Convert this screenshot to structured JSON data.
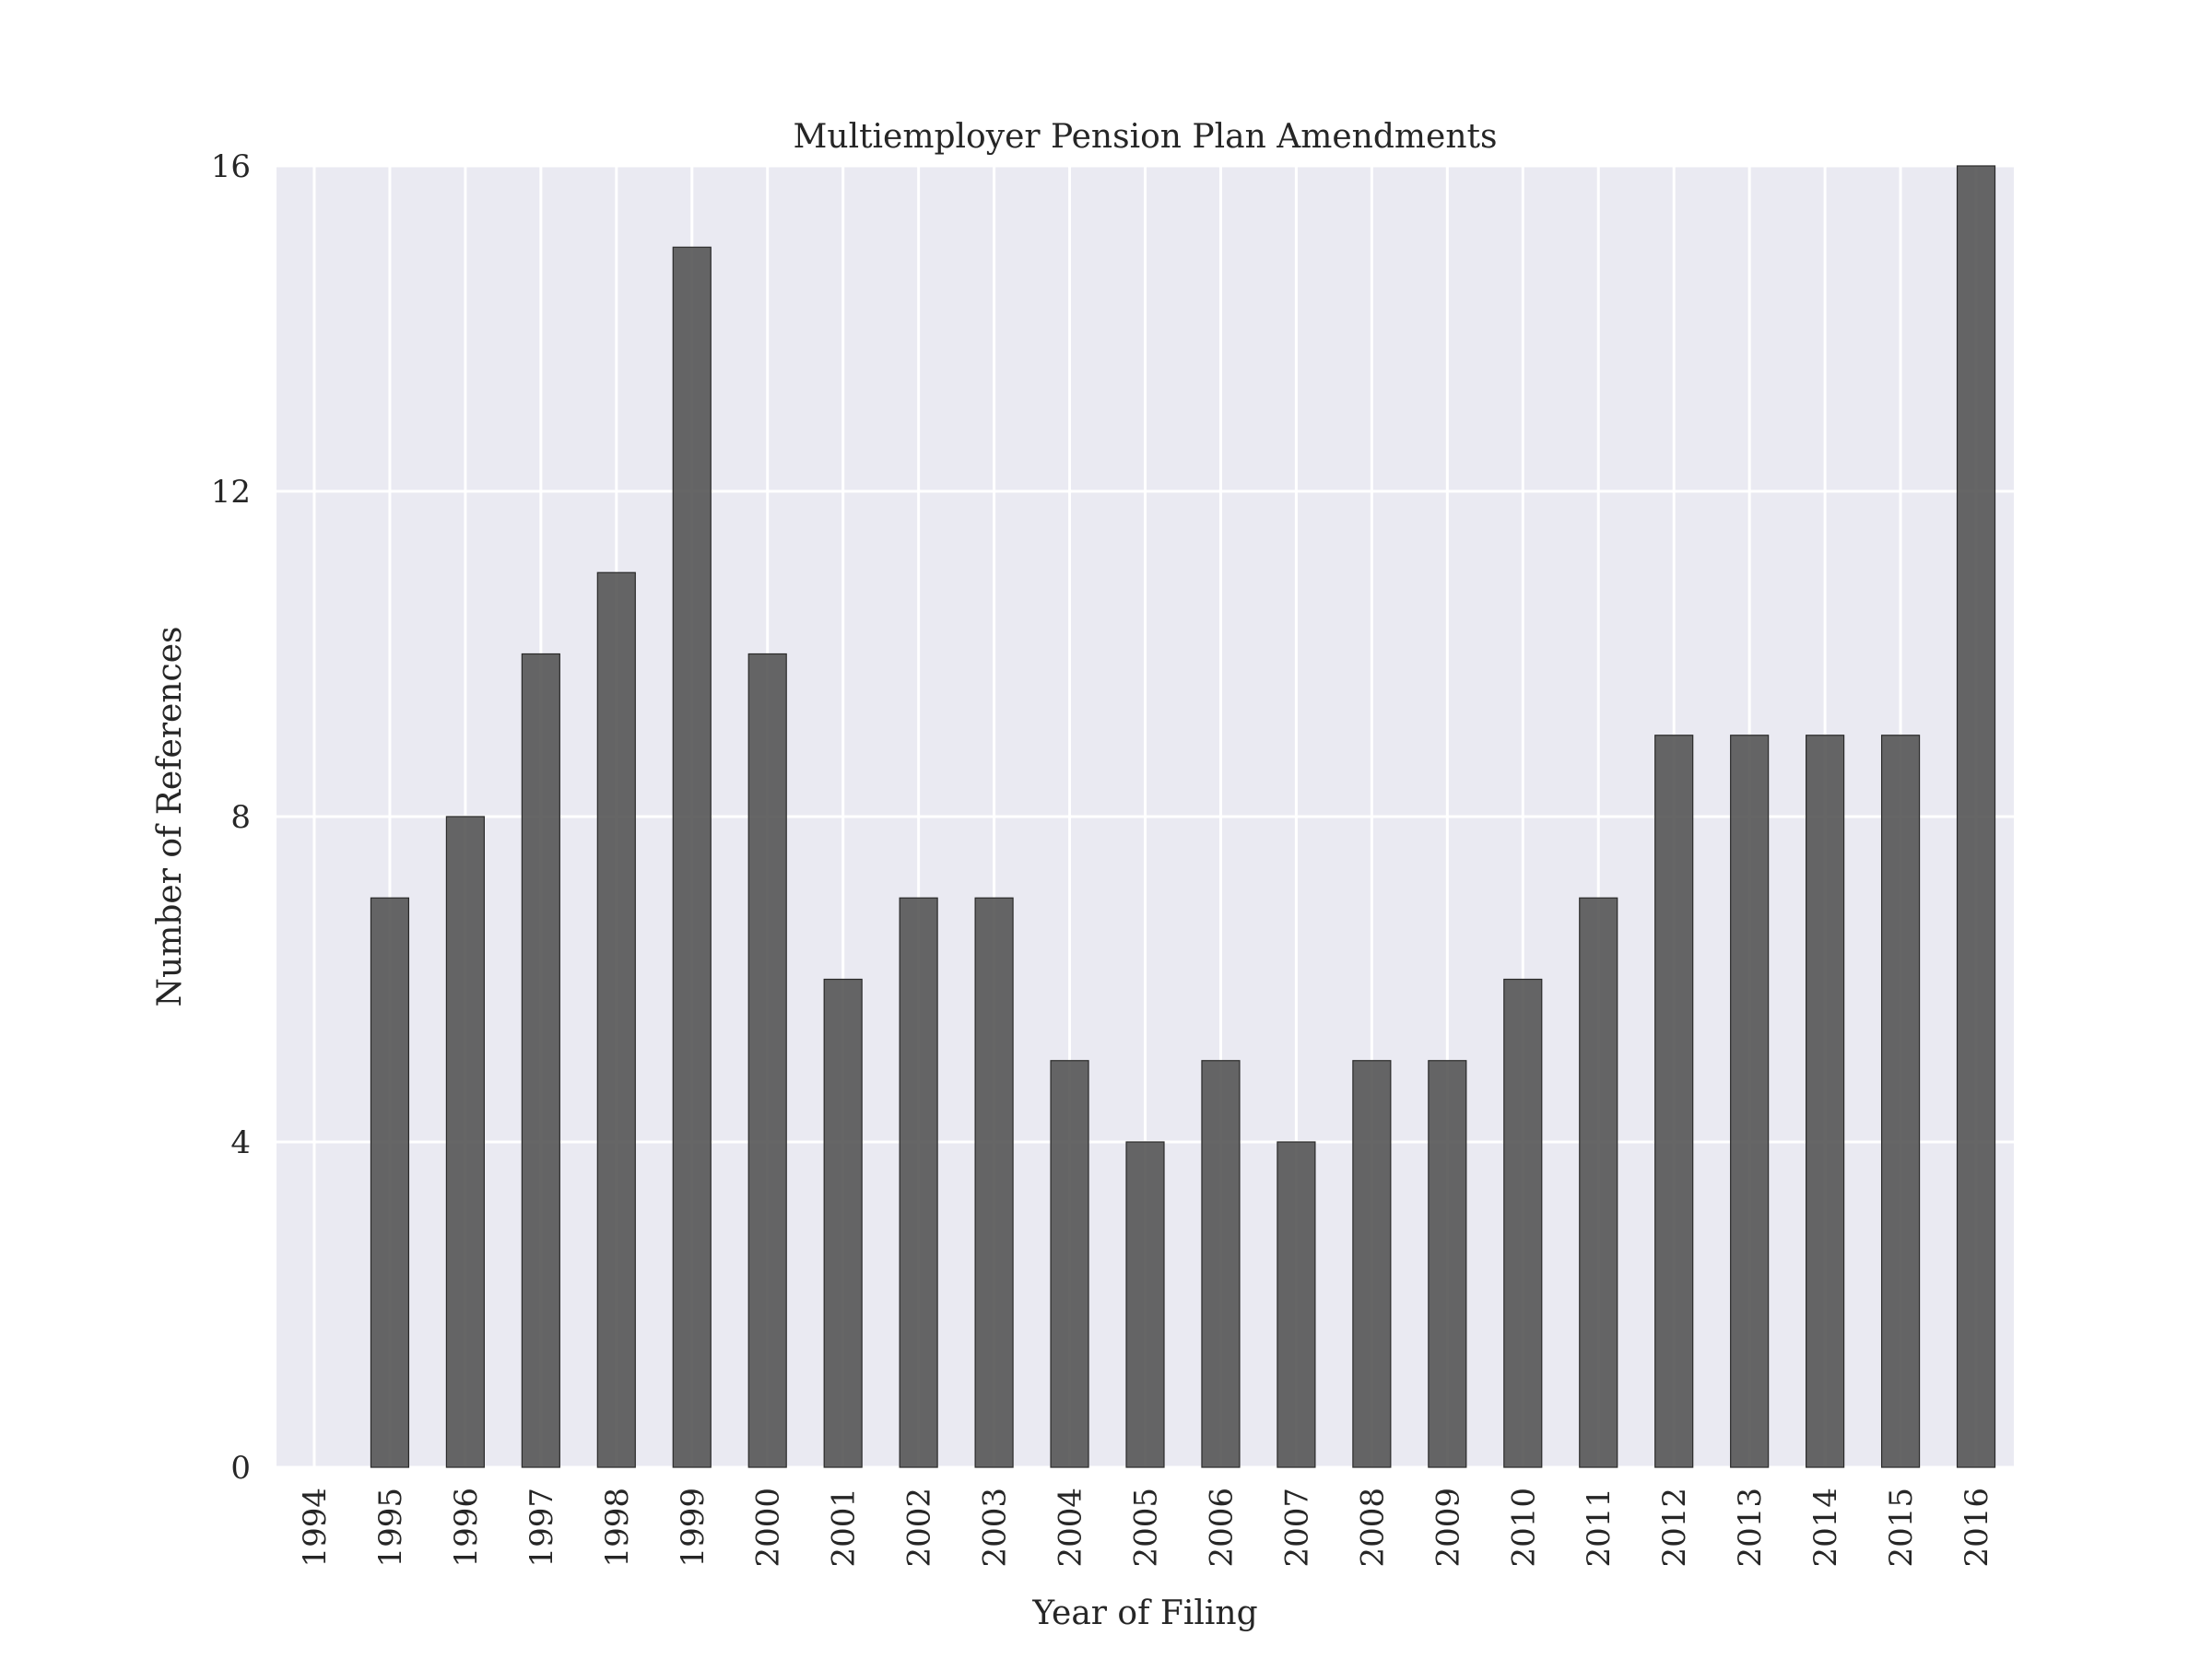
{
  "chart_data": {
    "type": "bar",
    "title": "Multiemployer Pension Plan Amendments",
    "xlabel": "Year of Filing",
    "ylabel": "Number of References",
    "categories": [
      "1994",
      "1995",
      "1996",
      "1997",
      "1998",
      "1999",
      "2000",
      "2001",
      "2002",
      "2003",
      "2004",
      "2005",
      "2006",
      "2007",
      "2008",
      "2009",
      "2010",
      "2011",
      "2012",
      "2013",
      "2014",
      "2015",
      "2016"
    ],
    "values": [
      0,
      7,
      8,
      10,
      11,
      15,
      10,
      6,
      7,
      7,
      5,
      4,
      5,
      4,
      5,
      5,
      6,
      7,
      9,
      9,
      9,
      9,
      16
    ],
    "ylim": [
      0,
      16
    ],
    "yticks": [
      0,
      4,
      8,
      12,
      16
    ],
    "grid": true,
    "bar_color": "#555555",
    "background_color": "#eaeaf2"
  }
}
